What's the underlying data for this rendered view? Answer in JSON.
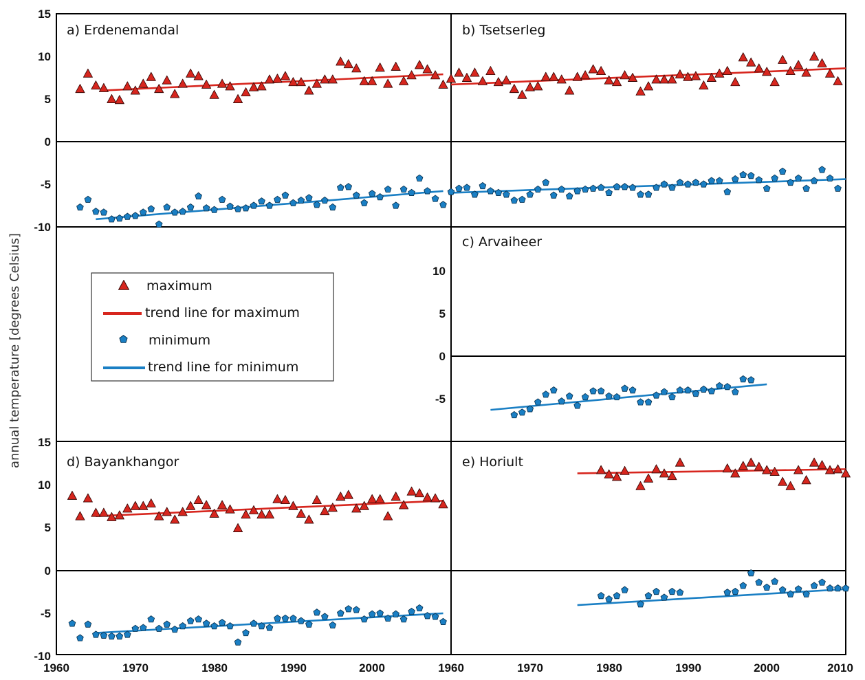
{
  "figure": {
    "ylabel": "annual temperature [degrees Celsius]",
    "colors": {
      "max": "#d7261e",
      "min": "#1a7fc4",
      "frame": "#000000"
    }
  },
  "legend": {
    "items": [
      {
        "label": "maximum",
        "marker": "triangle",
        "color": "#d7261e"
      },
      {
        "label": "trend line for maximum",
        "marker": "line",
        "color": "#d7261e"
      },
      {
        "label": "minimum",
        "marker": "pentagon",
        "color": "#1a7fc4"
      },
      {
        "label": "trend line for minimum",
        "marker": "line",
        "color": "#1a7fc4"
      }
    ]
  },
  "chart_data": [
    {
      "type": "scatter",
      "title": "a) Erdenemandal",
      "xlim": [
        1960,
        2010
      ],
      "ylim_max": [
        0,
        15
      ],
      "ylim_min": [
        -10,
        0
      ],
      "max_x": [
        1963,
        1964,
        1965,
        1966,
        1967,
        1968,
        1969,
        1970,
        1971,
        1972,
        1973,
        1974,
        1975,
        1976,
        1977,
        1978,
        1979,
        1980,
        1981,
        1982,
        1983,
        1984,
        1985,
        1986,
        1987,
        1988,
        1989,
        1990,
        1991,
        1992,
        1993,
        1994,
        1995,
        1996,
        1997,
        1998,
        1999,
        2000,
        2001,
        2002,
        2003,
        2004,
        2005,
        2006,
        2007,
        2008,
        2009
      ],
      "max_y": [
        6.2,
        8.0,
        6.6,
        6.3,
        5.0,
        4.9,
        6.5,
        6.0,
        6.8,
        7.6,
        6.2,
        7.2,
        5.6,
        6.8,
        8.0,
        7.7,
        6.7,
        5.5,
        6.8,
        6.5,
        5.0,
        5.8,
        6.4,
        6.5,
        7.3,
        7.4,
        7.7,
        7.0,
        7.0,
        6.0,
        6.8,
        7.3,
        7.3,
        9.4,
        9.1,
        8.6,
        7.1,
        7.1,
        8.7,
        6.8,
        8.8,
        7.1,
        7.8,
        9.0,
        8.5,
        7.8,
        6.7
      ],
      "max_trend": [
        [
          1966,
          6.0
        ],
        [
          2009,
          7.9
        ]
      ],
      "min_x": [
        1963,
        1964,
        1965,
        1966,
        1967,
        1968,
        1969,
        1970,
        1971,
        1972,
        1973,
        1974,
        1975,
        1976,
        1977,
        1978,
        1979,
        1980,
        1981,
        1982,
        1983,
        1984,
        1985,
        1986,
        1987,
        1988,
        1989,
        1990,
        1991,
        1992,
        1993,
        1994,
        1995,
        1996,
        1997,
        1998,
        1999,
        2000,
        2001,
        2002,
        2003,
        2004,
        2005,
        2006,
        2007,
        2008,
        2009
      ],
      "min_y": [
        -7.7,
        -6.8,
        -8.2,
        -8.3,
        -9.1,
        -9.0,
        -8.8,
        -8.7,
        -8.3,
        -7.9,
        -9.7,
        -7.7,
        -8.3,
        -8.2,
        -7.7,
        -6.4,
        -7.8,
        -8.0,
        -6.8,
        -7.6,
        -7.9,
        -7.8,
        -7.5,
        -7.0,
        -7.5,
        -6.8,
        -6.3,
        -7.2,
        -6.9,
        -6.6,
        -7.4,
        -6.9,
        -7.7,
        -5.4,
        -5.3,
        -6.3,
        -7.2,
        -6.1,
        -6.5,
        -5.6,
        -7.5,
        -5.6,
        -6.0,
        -4.3,
        -5.8,
        -6.7,
        -7.4
      ],
      "min_trend": [
        [
          1965,
          -9.1
        ],
        [
          2009,
          -5.8
        ]
      ]
    },
    {
      "type": "scatter",
      "title": "b) Tsetserleg",
      "xlim": [
        1960,
        2010
      ],
      "ylim_max": [
        0,
        15
      ],
      "ylim_min": [
        -10,
        0
      ],
      "max_x": [
        1960,
        1961,
        1962,
        1963,
        1964,
        1965,
        1966,
        1967,
        1968,
        1969,
        1970,
        1971,
        1972,
        1973,
        1974,
        1975,
        1976,
        1977,
        1978,
        1979,
        1980,
        1981,
        1982,
        1983,
        1984,
        1985,
        1986,
        1987,
        1988,
        1989,
        1990,
        1991,
        1992,
        1993,
        1994,
        1995,
        1996,
        1997,
        1998,
        1999,
        2000,
        2001,
        2002,
        2003,
        2004,
        2005,
        2006,
        2007,
        2008,
        2009
      ],
      "max_y": [
        7.4,
        8.1,
        7.5,
        8.1,
        7.1,
        8.3,
        7.0,
        7.2,
        6.2,
        5.5,
        6.4,
        6.5,
        7.6,
        7.6,
        7.3,
        6.0,
        7.6,
        7.8,
        8.5,
        8.3,
        7.2,
        7.0,
        7.8,
        7.5,
        5.9,
        6.5,
        7.3,
        7.3,
        7.3,
        7.9,
        7.6,
        7.7,
        6.6,
        7.5,
        8.0,
        8.3,
        7.0,
        9.9,
        9.3,
        8.6,
        8.2,
        7.0,
        9.6,
        8.3,
        9.0,
        8.1,
        10.0,
        9.2,
        8.0,
        7.1
      ],
      "max_trend": [
        [
          1960,
          6.7
        ],
        [
          2010,
          8.6
        ]
      ],
      "min_x": [
        1960,
        1961,
        1962,
        1963,
        1964,
        1965,
        1966,
        1967,
        1968,
        1969,
        1970,
        1971,
        1972,
        1973,
        1974,
        1975,
        1976,
        1977,
        1978,
        1979,
        1980,
        1981,
        1982,
        1983,
        1984,
        1985,
        1986,
        1987,
        1988,
        1989,
        1990,
        1991,
        1992,
        1993,
        1994,
        1995,
        1996,
        1997,
        1998,
        1999,
        2000,
        2001,
        2002,
        2003,
        2004,
        2005,
        2006,
        2007,
        2008,
        2009
      ],
      "min_y": [
        -5.9,
        -5.5,
        -5.4,
        -6.2,
        -5.2,
        -5.8,
        -6.0,
        -6.2,
        -6.9,
        -6.8,
        -6.2,
        -5.6,
        -4.8,
        -6.3,
        -5.6,
        -6.4,
        -5.8,
        -5.6,
        -5.5,
        -5.4,
        -6.0,
        -5.3,
        -5.3,
        -5.4,
        -6.2,
        -6.2,
        -5.4,
        -5.0,
        -5.4,
        -4.8,
        -5.0,
        -4.8,
        -5.0,
        -4.6,
        -4.6,
        -5.9,
        -4.4,
        -3.9,
        -4.0,
        -4.5,
        -5.5,
        -4.3,
        -3.5,
        -4.8,
        -4.3,
        -5.5,
        -4.6,
        -3.3,
        -4.3,
        -5.5
      ],
      "min_trend": [
        [
          1960,
          -6.0
        ],
        [
          2010,
          -4.4
        ]
      ]
    },
    {
      "type": "scatter",
      "title": "c) Arvaiheer",
      "xlim": [
        1960,
        2010
      ],
      "ylim_max": [
        0,
        15
      ],
      "ylim_min": [
        -10,
        0
      ],
      "max_x": [],
      "max_y": [],
      "max_trend": [],
      "min_x": [
        1968,
        1969,
        1970,
        1971,
        1972,
        1973,
        1974,
        1975,
        1976,
        1977,
        1978,
        1979,
        1980,
        1981,
        1982,
        1983,
        1984,
        1985,
        1986,
        1987,
        1988,
        1989,
        1990,
        1991,
        1992,
        1993,
        1994,
        1995,
        1996,
        1997,
        1998
      ],
      "min_y": [
        -6.9,
        -6.6,
        -6.2,
        -5.4,
        -4.5,
        -4.0,
        -5.3,
        -4.7,
        -5.8,
        -4.8,
        -4.1,
        -4.1,
        -4.7,
        -4.8,
        -3.8,
        -4.0,
        -5.4,
        -5.4,
        -4.6,
        -4.2,
        -4.8,
        -4.0,
        -4.0,
        -4.4,
        -3.9,
        -4.1,
        -3.5,
        -3.6,
        -4.2,
        -2.7,
        -2.8
      ],
      "min_trend": [
        [
          1965,
          -6.3
        ],
        [
          2000,
          -3.3
        ]
      ]
    },
    {
      "type": "scatter",
      "title": "d) Bayankhangor",
      "xlim": [
        1960,
        2010
      ],
      "ylim_max": [
        0,
        15
      ],
      "ylim_min": [
        -10,
        0
      ],
      "max_x": [
        1962,
        1963,
        1964,
        1965,
        1966,
        1967,
        1968,
        1969,
        1970,
        1971,
        1972,
        1973,
        1974,
        1975,
        1976,
        1977,
        1978,
        1979,
        1980,
        1981,
        1982,
        1983,
        1984,
        1985,
        1986,
        1987,
        1988,
        1989,
        1990,
        1991,
        1992,
        1993,
        1994,
        1995,
        1996,
        1997,
        1998,
        1999,
        2000,
        2001,
        2002,
        2003,
        2004,
        2005,
        2006,
        2007,
        2008,
        2009
      ],
      "max_y": [
        8.8,
        6.4,
        8.5,
        6.8,
        6.8,
        6.3,
        6.5,
        7.3,
        7.6,
        7.6,
        7.9,
        6.4,
        6.9,
        6.0,
        6.9,
        7.6,
        8.3,
        7.7,
        6.7,
        7.7,
        7.2,
        5.0,
        6.6,
        7.1,
        6.6,
        6.6,
        8.4,
        8.3,
        7.6,
        6.7,
        6.0,
        8.3,
        7.0,
        7.4,
        8.7,
        8.9,
        7.3,
        7.6,
        8.4,
        8.4,
        6.4,
        8.7,
        7.7,
        9.3,
        9.1,
        8.6,
        8.5,
        7.8
      ],
      "max_trend": [
        [
          1965,
          6.4
        ],
        [
          2009,
          8.2
        ]
      ],
      "min_x": [
        1962,
        1963,
        1964,
        1965,
        1966,
        1967,
        1968,
        1969,
        1970,
        1971,
        1972,
        1973,
        1974,
        1975,
        1976,
        1977,
        1978,
        1979,
        1980,
        1981,
        1982,
        1983,
        1984,
        1985,
        1986,
        1987,
        1988,
        1989,
        1990,
        1991,
        1992,
        1993,
        1994,
        1995,
        1996,
        1997,
        1998,
        1999,
        2000,
        2001,
        2002,
        2003,
        2004,
        2005,
        2006,
        2007,
        2008,
        2009
      ],
      "min_y": [
        -6.2,
        -7.9,
        -6.3,
        -7.5,
        -7.6,
        -7.7,
        -7.7,
        -7.5,
        -6.8,
        -6.7,
        -5.7,
        -6.8,
        -6.3,
        -6.9,
        -6.5,
        -5.9,
        -5.7,
        -6.2,
        -6.5,
        -6.1,
        -6.5,
        -8.4,
        -7.3,
        -6.2,
        -6.5,
        -6.7,
        -5.6,
        -5.6,
        -5.6,
        -5.9,
        -6.3,
        -4.9,
        -5.4,
        -6.4,
        -5.0,
        -4.5,
        -4.6,
        -5.7,
        -5.1,
        -5.0,
        -5.6,
        -5.1,
        -5.7,
        -4.8,
        -4.4,
        -5.3,
        -5.4,
        -6.0
      ],
      "min_trend": [
        [
          1965,
          -7.3
        ],
        [
          2009,
          -5.0
        ]
      ]
    },
    {
      "type": "scatter",
      "title": "e) Horiult",
      "xlim": [
        1960,
        2010
      ],
      "ylim_max": [
        0,
        15
      ],
      "ylim_min": [
        -10,
        0
      ],
      "max_x": [
        1979,
        1980,
        1981,
        1982,
        1984,
        1985,
        1986,
        1987,
        1988,
        1989,
        1995,
        1996,
        1997,
        1998,
        1999,
        2000,
        2001,
        2002,
        2003,
        2004,
        2005,
        2006,
        2007,
        2008,
        2009,
        2010
      ],
      "max_y": [
        12.0,
        11.5,
        11.2,
        11.9,
        10.1,
        11.0,
        12.1,
        11.6,
        11.3,
        12.9,
        12.2,
        11.6,
        12.5,
        12.9,
        12.4,
        12.0,
        11.8,
        10.6,
        10.1,
        12.0,
        10.8,
        12.9,
        12.6,
        12.0,
        12.1,
        11.6
      ],
      "max_trend": [
        [
          1976,
          11.6
        ],
        [
          2010,
          12.1
        ]
      ],
      "min_x": [
        1979,
        1980,
        1981,
        1982,
        1984,
        1985,
        1986,
        1987,
        1988,
        1989,
        1995,
        1996,
        1997,
        1998,
        1999,
        2000,
        2001,
        2002,
        2003,
        2004,
        2005,
        2006,
        2007,
        2008,
        2009,
        2010
      ],
      "min_y": [
        -3.0,
        -3.4,
        -3.0,
        -2.3,
        -4.0,
        -3.0,
        -2.5,
        -3.2,
        -2.5,
        -2.6,
        -2.6,
        -2.5,
        -1.8,
        -0.3,
        -1.4,
        -2.0,
        -1.3,
        -2.3,
        -2.8,
        -2.2,
        -2.8,
        -1.8,
        -1.4,
        -2.1,
        -2.1,
        -2.1
      ],
      "min_trend": [
        [
          1976,
          -4.1
        ],
        [
          2010,
          -2.2
        ]
      ]
    }
  ]
}
